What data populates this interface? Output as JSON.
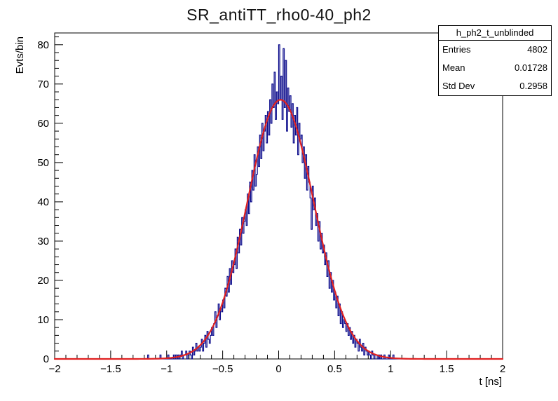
{
  "title": "SR_antiTT_rho0-40_ph2",
  "stats_box": {
    "header": "h_ph2_t_unblinded",
    "rows": [
      {
        "label": "Entries",
        "value": "4802"
      },
      {
        "label": "Mean",
        "value": "0.01728"
      },
      {
        "label": "Std Dev",
        "value": "0.2958"
      }
    ]
  },
  "chart_data": {
    "type": "bar",
    "style": "step-histogram-with-gaussian-fit",
    "title": "SR_antiTT_rho0-40_ph2",
    "xlabel": "t [ns]",
    "ylabel": "Evts/bin",
    "xlim": [
      -2,
      2
    ],
    "ylim": [
      0,
      83
    ],
    "grid": false,
    "x_axis": {
      "tick_values": [
        -2,
        -1.5,
        -1,
        -0.5,
        0,
        0.5,
        1,
        1.5,
        2
      ],
      "tick_labels": [
        "−2",
        "−1.5",
        "−1",
        "−0.5",
        "0",
        "0.5",
        "1",
        "1.5",
        "2"
      ],
      "minor_step": 0.1
    },
    "y_axis": {
      "tick_values": [
        0,
        10,
        20,
        30,
        40,
        50,
        60,
        70,
        80
      ],
      "tick_labels": [
        "0",
        "10",
        "20",
        "30",
        "40",
        "50",
        "60",
        "70",
        "80"
      ],
      "minor_step": 2
    },
    "histogram": {
      "color": "#0c0c8c",
      "bin_width": 0.01,
      "first_bin_x": -1.3,
      "counts": [
        0,
        0,
        0,
        0,
        0,
        0,
        0,
        0,
        0,
        0,
        0,
        0,
        0,
        1,
        0,
        0,
        0,
        0,
        0,
        0,
        0,
        0,
        0,
        0,
        1,
        0,
        0,
        0,
        0,
        0,
        0,
        1,
        0,
        0,
        0,
        0,
        1,
        0,
        1,
        0,
        1,
        0,
        1,
        2,
        0,
        1,
        1,
        2,
        0,
        1,
        2,
        1,
        0,
        3,
        1,
        2,
        4,
        2,
        3,
        2,
        3,
        5,
        2,
        4,
        6,
        3,
        7,
        5,
        4,
        6,
        8,
        6,
        9,
        12,
        8,
        11,
        14,
        10,
        13,
        12,
        15,
        13,
        18,
        16,
        21,
        17,
        23,
        19,
        25,
        22,
        24,
        28,
        23,
        31,
        27,
        33,
        29,
        36,
        32,
        35,
        38,
        34,
        42,
        37,
        45,
        40,
        48,
        43,
        52,
        44,
        47,
        54,
        49,
        57,
        51,
        60,
        53,
        58,
        62,
        55,
        63,
        57,
        66,
        60,
        70,
        64,
        73,
        61,
        68,
        65,
        80,
        66,
        72,
        61,
        79,
        64,
        76,
        58,
        69,
        63,
        67,
        59,
        65,
        55,
        62,
        57,
        64,
        52,
        60,
        56,
        57,
        50,
        54,
        46,
        52,
        43,
        49,
        45,
        41,
        33,
        44,
        38,
        41,
        34,
        37,
        30,
        35,
        28,
        32,
        27,
        29,
        24,
        27,
        21,
        25,
        18,
        22,
        17,
        20,
        15,
        17,
        13,
        16,
        11,
        14,
        9,
        12,
        8,
        10,
        9,
        7,
        9,
        6,
        8,
        5,
        7,
        4,
        6,
        3,
        5,
        4,
        2,
        5,
        3,
        2,
        4,
        1,
        3,
        2,
        1,
        2,
        1,
        0,
        2,
        1,
        0,
        1,
        1,
        0,
        1,
        0,
        1,
        0,
        0,
        1,
        0,
        0,
        0,
        1,
        0,
        0,
        0,
        1,
        0,
        0,
        0,
        0,
        0,
        0,
        0,
        0,
        0,
        0,
        0,
        0,
        0,
        0,
        0,
        0,
        0,
        0,
        0,
        0,
        0,
        0,
        0,
        0,
        0,
        0,
        0
      ]
    },
    "fit": {
      "type": "gaussian",
      "color": "#e02020",
      "amplitude": 66,
      "mean": 0.017,
      "sigma": 0.296
    }
  }
}
